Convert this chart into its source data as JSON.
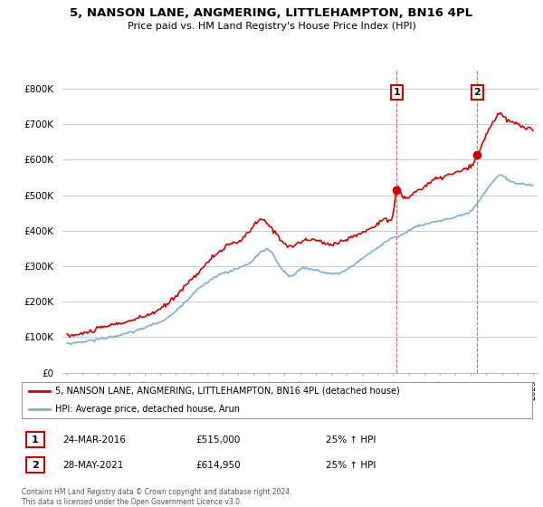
{
  "title": "5, NANSON LANE, ANGMERING, LITTLEHAMPTON, BN16 4PL",
  "subtitle": "Price paid vs. HM Land Registry's House Price Index (HPI)",
  "legend_entry1": "5, NANSON LANE, ANGMERING, LITTLEHAMPTON, BN16 4PL (detached house)",
  "legend_entry2": "HPI: Average price, detached house, Arun",
  "annotation1_label": "1",
  "annotation1_date": "24-MAR-2016",
  "annotation1_price": "£515,000",
  "annotation1_hpi": "25% ↑ HPI",
  "annotation2_label": "2",
  "annotation2_date": "28-MAY-2021",
  "annotation2_price": "£614,950",
  "annotation2_hpi": "25% ↑ HPI",
  "copyright": "Contains HM Land Registry data © Crown copyright and database right 2024.\nThis data is licensed under the Open Government Licence v3.0.",
  "red_color": "#cc0000",
  "blue_color": "#7bafd4",
  "vline_color": "#cc0000",
  "annotation_box_color": "#cc0000",
  "grid_color": "#cccccc",
  "bg_color": "#ffffff",
  "ylim": [
    0,
    850000
  ],
  "yticks": [
    0,
    100000,
    200000,
    300000,
    400000,
    500000,
    600000,
    700000,
    800000
  ],
  "vline1_x": 2016.23,
  "vline2_x": 2021.42,
  "ann1_x": 2016.23,
  "ann1_y": 515000,
  "ann2_x": 2021.42,
  "ann2_y": 614950,
  "xmin": 1995,
  "xmax": 2025
}
